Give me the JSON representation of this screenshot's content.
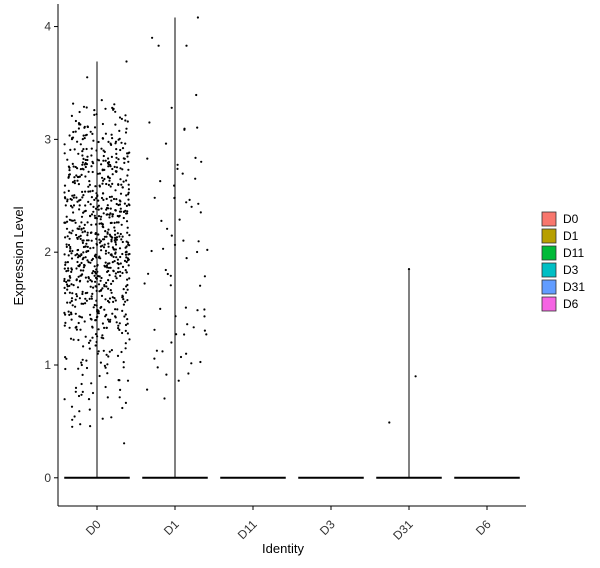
{
  "chart_data": {
    "type": "scatter",
    "subtype": "violin-jitter",
    "title": "",
    "xlabel": "Identity",
    "ylabel": "Expression Level",
    "categories": [
      "D0",
      "D1",
      "D11",
      "D3",
      "D31",
      "D6"
    ],
    "ylim": [
      -0.25,
      4.2
    ],
    "yticks": [
      0,
      1,
      2,
      3,
      4
    ],
    "grid": false,
    "legend": {
      "position": "right",
      "entries": [
        "D0",
        "D1",
        "D11",
        "D3",
        "D31",
        "D6"
      ]
    },
    "colors": {
      "D0": "#F8766D",
      "D1": "#B79F00",
      "D11": "#00BA38",
      "D3": "#00BFC4",
      "D31": "#619CFF",
      "D6": "#F564E3"
    },
    "series": [
      {
        "name": "D0",
        "max": 3.69,
        "bulk_range": [
          0.2,
          3.35
        ],
        "bulk_center": 2.1,
        "point_density": "high"
      },
      {
        "name": "D1",
        "max": 4.08,
        "bulk_range": [
          0.2,
          3.9
        ],
        "bulk_center": 1.9,
        "point_density": "low"
      },
      {
        "name": "D11",
        "max": 0,
        "point_density": "none"
      },
      {
        "name": "D3",
        "max": 0,
        "point_density": "none"
      },
      {
        "name": "D31",
        "max": 1.85,
        "points": [
          0.49,
          0.9,
          1.85
        ],
        "point_density": "very-low"
      },
      {
        "name": "D6",
        "max": 0,
        "point_density": "none"
      }
    ]
  }
}
